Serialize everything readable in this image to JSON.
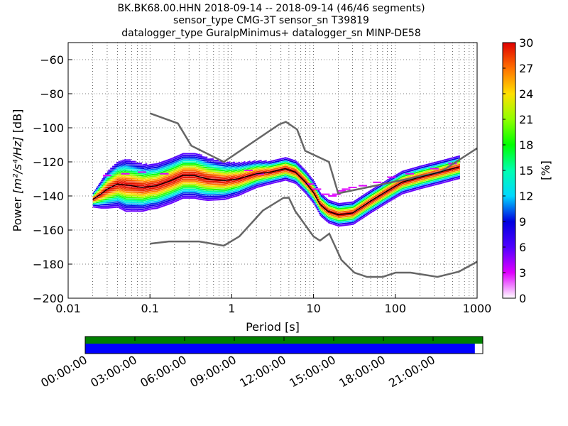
{
  "title_lines": [
    "BK.BK68.00.HHN   2018-09-14 -- 2018-09-14  (46/46 segments)",
    "sensor_type CMG-3T sensor_sn T39819",
    "datalogger_type GuralpMinimus+ datalogger_sn MINP-DE58"
  ],
  "colorbar": {
    "label": "[%]",
    "ticks": [
      "0",
      "3",
      "6",
      "9",
      "12",
      "15",
      "18",
      "21",
      "24",
      "27",
      "30"
    ],
    "range": [
      0,
      30
    ]
  },
  "timeline": {
    "ticks": [
      "00:00:00",
      "03:00:00",
      "06:00:00",
      "09:00:00",
      "12:00:00",
      "15:00:00",
      "18:00:00",
      "21:00:00"
    ],
    "colors": {
      "top": "#008000",
      "bottom": "#0000ff"
    },
    "coverage_fraction": 0.98
  },
  "chart_data": {
    "type": "heatmap",
    "xlabel": "Period [s]",
    "ylabel_prefix": "Power ",
    "ylabel_unit": "[m²/s⁴/Hz]",
    "ylabel_suffix": " [dB]",
    "xscale": "log",
    "xlim": [
      0.01,
      1000
    ],
    "ylim": [
      -200,
      -50
    ],
    "x_ticks": [
      {
        "v": 0.01,
        "label": "0.01"
      },
      {
        "v": 0.1,
        "label": "0.1"
      },
      {
        "v": 1,
        "label": "1"
      },
      {
        "v": 10,
        "label": "10"
      },
      {
        "v": 100,
        "label": "100"
      },
      {
        "v": 1000,
        "label": "1000"
      }
    ],
    "y_ticks": [
      {
        "v": -60,
        "label": "−60"
      },
      {
        "v": -80,
        "label": "−80"
      },
      {
        "v": -100,
        "label": "−100"
      },
      {
        "v": -120,
        "label": "−120"
      },
      {
        "v": -140,
        "label": "−140"
      },
      {
        "v": -160,
        "label": "−160"
      },
      {
        "v": -180,
        "label": "−180"
      },
      {
        "v": -200,
        "label": "−200"
      }
    ],
    "grid": true,
    "nhnm": [
      [
        0.1,
        -168
      ],
      [
        0.17,
        -166.7
      ],
      [
        0.4,
        -166.7
      ],
      [
        0.8,
        -169.2
      ],
      [
        1.24,
        -163.7
      ],
      [
        2.4,
        -148.6
      ],
      [
        4.3,
        -141.1
      ],
      [
        5,
        -141.1
      ],
      [
        6,
        -149
      ],
      [
        10,
        -163.8
      ],
      [
        12,
        -166.2
      ],
      [
        15.6,
        -162.1
      ],
      [
        21.9,
        -177.5
      ],
      [
        31.6,
        -185
      ],
      [
        45,
        -187.5
      ],
      [
        70,
        -187.5
      ],
      [
        101,
        -185
      ],
      [
        154,
        -185
      ],
      [
        328,
        -187.5
      ],
      [
        600,
        -184.4
      ],
      [
        1000,
        -178.6
      ]
    ],
    "nlnm": [
      [
        0.1,
        -91.5
      ],
      [
        0.22,
        -97.4
      ],
      [
        0.32,
        -110.5
      ],
      [
        0.8,
        -120
      ],
      [
        3.8,
        -98
      ],
      [
        4.6,
        -96.5
      ],
      [
        6.3,
        -101
      ],
      [
        7.9,
        -113.5
      ],
      [
        15.4,
        -120
      ],
      [
        20,
        -138.5
      ],
      [
        354.8,
        -126
      ],
      [
        1000,
        -112
      ]
    ],
    "ppsd_mode": [
      [
        0.02,
        -142
      ],
      [
        0.025,
        -139
      ],
      [
        0.03,
        -136
      ],
      [
        0.04,
        -133
      ],
      [
        0.06,
        -134
      ],
      [
        0.08,
        -135
      ],
      [
        0.12,
        -134
      ],
      [
        0.18,
        -131
      ],
      [
        0.25,
        -128
      ],
      [
        0.35,
        -128
      ],
      [
        0.5,
        -130
      ],
      [
        0.8,
        -131
      ],
      [
        1.2,
        -130
      ],
      [
        2,
        -127
      ],
      [
        3,
        -126
      ],
      [
        4.5,
        -124
      ],
      [
        6,
        -126
      ],
      [
        8,
        -132
      ],
      [
        10,
        -138
      ],
      [
        12,
        -145
      ],
      [
        15,
        -149
      ],
      [
        20,
        -151
      ],
      [
        30,
        -150
      ],
      [
        50,
        -143
      ],
      [
        80,
        -137
      ],
      [
        120,
        -132
      ],
      [
        200,
        -129
      ],
      [
        350,
        -126
      ],
      [
        600,
        -123
      ]
    ],
    "ppsd_spread": [
      [
        0.02,
        2
      ],
      [
        0.03,
        5
      ],
      [
        0.05,
        7
      ],
      [
        0.1,
        6
      ],
      [
        0.2,
        6
      ],
      [
        0.4,
        6
      ],
      [
        0.8,
        5
      ],
      [
        1.5,
        4
      ],
      [
        3,
        3
      ],
      [
        5,
        3
      ],
      [
        8,
        3
      ],
      [
        12,
        3
      ],
      [
        20,
        3
      ],
      [
        40,
        3
      ],
      [
        80,
        3
      ],
      [
        200,
        3
      ],
      [
        600,
        3
      ]
    ],
    "ppsd_outliers": [
      [
        0.03,
        -128
      ],
      [
        0.05,
        -127
      ],
      [
        0.08,
        -126
      ],
      [
        0.15,
        -127
      ],
      [
        1.6,
        -125
      ],
      [
        2.2,
        -127
      ],
      [
        9,
        -133
      ],
      [
        11,
        -136
      ],
      [
        14,
        -139
      ],
      [
        17,
        -140
      ],
      [
        19,
        -139
      ],
      [
        22,
        -137
      ],
      [
        25,
        -136
      ],
      [
        30,
        -135
      ],
      [
        40,
        -134
      ],
      [
        60,
        -132
      ],
      [
        90,
        -129
      ],
      [
        150,
        -127
      ],
      [
        300,
        -124
      ],
      [
        500,
        -121
      ]
    ]
  }
}
